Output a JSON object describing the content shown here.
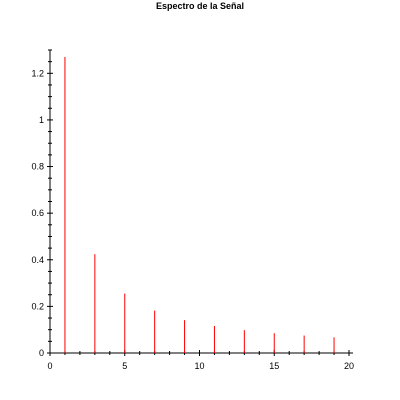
{
  "chart_data": {
    "type": "bar",
    "title": "Espectro de la Señal",
    "xlabel": "",
    "ylabel": "",
    "xlim": [
      0,
      20
    ],
    "ylim": [
      0,
      1.3
    ],
    "x_ticks": [
      0,
      5,
      10,
      15,
      20
    ],
    "x_tick_labels": [
      "0",
      "5",
      "10",
      "15",
      "20"
    ],
    "y_ticks": [
      0,
      0.2,
      0.4,
      0.6,
      0.8,
      1,
      1.2
    ],
    "y_tick_labels": [
      "0",
      "0.2",
      "0.4",
      "0.6",
      "0.8",
      "1",
      "1.2"
    ],
    "grid": false,
    "legend": "none",
    "stem_color": "#ff0000",
    "x": [
      1,
      3,
      5,
      7,
      9,
      11,
      13,
      15,
      17,
      19
    ],
    "values": [
      1.27,
      0.424,
      0.255,
      0.182,
      0.141,
      0.116,
      0.098,
      0.085,
      0.075,
      0.067
    ]
  }
}
